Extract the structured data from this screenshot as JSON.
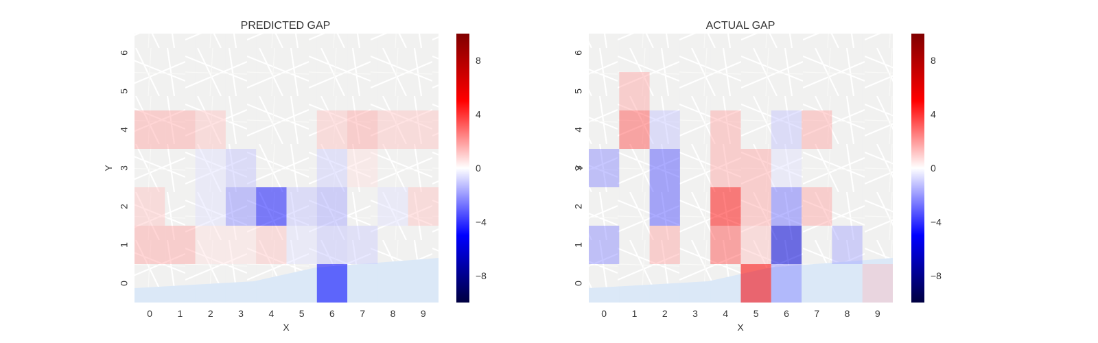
{
  "chart_data": [
    {
      "type": "heatmap",
      "title": "PREDICTED GAP",
      "xlabel": "X",
      "ylabel": "Y",
      "x_ticks": [
        "0",
        "1",
        "2",
        "3",
        "4",
        "5",
        "6",
        "7",
        "8",
        "9"
      ],
      "y_ticks": [
        "0",
        "1",
        "2",
        "3",
        "4",
        "5",
        "6"
      ],
      "colormap": "seismic",
      "vlim": [
        -10,
        10
      ],
      "colorbar_ticks": [
        "8",
        "4",
        "0",
        "−4",
        "−8"
      ],
      "colorbar_tick_values": [
        8,
        4,
        0,
        -4,
        -8
      ],
      "cells": [
        [
          0,
          0,
          0
        ],
        [
          1,
          0,
          0
        ],
        [
          2,
          0,
          0
        ],
        [
          3,
          0,
          0
        ],
        [
          4,
          0,
          0
        ],
        [
          5,
          0,
          0
        ],
        [
          6,
          0,
          -5
        ],
        [
          7,
          0,
          0
        ],
        [
          8,
          0,
          0
        ],
        [
          9,
          0,
          0
        ],
        [
          0,
          1,
          1.5
        ],
        [
          1,
          1,
          1.5
        ],
        [
          2,
          1,
          0.5
        ],
        [
          3,
          1,
          0.5
        ],
        [
          4,
          1,
          1
        ],
        [
          5,
          1,
          -0.5
        ],
        [
          6,
          1,
          -1
        ],
        [
          7,
          1,
          -0.8
        ],
        [
          8,
          1,
          0
        ],
        [
          9,
          1,
          0
        ],
        [
          0,
          2,
          1
        ],
        [
          1,
          2,
          0
        ],
        [
          2,
          2,
          -0.5
        ],
        [
          3,
          2,
          -2
        ],
        [
          4,
          2,
          -4.5
        ],
        [
          5,
          2,
          -1
        ],
        [
          6,
          2,
          -1.5
        ],
        [
          7,
          2,
          0
        ],
        [
          8,
          2,
          -0.5
        ],
        [
          9,
          2,
          1
        ],
        [
          0,
          3,
          0
        ],
        [
          1,
          3,
          0
        ],
        [
          2,
          3,
          -0.5
        ],
        [
          3,
          3,
          -1
        ],
        [
          4,
          3,
          0
        ],
        [
          5,
          3,
          0
        ],
        [
          6,
          3,
          -0.8
        ],
        [
          7,
          3,
          0.5
        ],
        [
          8,
          3,
          0
        ],
        [
          9,
          3,
          0
        ],
        [
          0,
          4,
          1.5
        ],
        [
          1,
          4,
          1.5
        ],
        [
          2,
          4,
          1
        ],
        [
          3,
          4,
          0
        ],
        [
          4,
          4,
          0
        ],
        [
          5,
          4,
          0
        ],
        [
          6,
          4,
          1
        ],
        [
          7,
          4,
          1.5
        ],
        [
          8,
          4,
          1
        ],
        [
          9,
          4,
          1
        ],
        [
          0,
          5,
          0
        ],
        [
          1,
          5,
          0
        ],
        [
          2,
          5,
          0
        ],
        [
          3,
          5,
          0
        ],
        [
          4,
          5,
          0
        ],
        [
          5,
          5,
          0
        ],
        [
          6,
          5,
          0
        ],
        [
          7,
          5,
          0
        ],
        [
          8,
          5,
          0
        ],
        [
          9,
          5,
          0
        ],
        [
          0,
          6,
          0
        ],
        [
          1,
          6,
          0
        ],
        [
          2,
          6,
          0
        ],
        [
          3,
          6,
          0
        ],
        [
          4,
          6,
          0
        ],
        [
          5,
          6,
          0
        ],
        [
          6,
          6,
          0
        ],
        [
          7,
          6,
          0
        ],
        [
          8,
          6,
          0
        ],
        [
          9,
          6,
          0
        ]
      ]
    },
    {
      "type": "heatmap",
      "title": "ACTUAL GAP",
      "xlabel": "X",
      "ylabel": "Y",
      "x_ticks": [
        "0",
        "1",
        "2",
        "3",
        "4",
        "5",
        "6",
        "7",
        "8",
        "9"
      ],
      "y_ticks": [
        "0",
        "1",
        "2",
        "3",
        "4",
        "5",
        "6"
      ],
      "colormap": "seismic",
      "vlim": [
        -10,
        10
      ],
      "colorbar_ticks": [
        "8",
        "4",
        "0",
        "−4",
        "−8"
      ],
      "colorbar_tick_values": [
        8,
        4,
        0,
        -4,
        -8
      ],
      "cells": [
        [
          0,
          0,
          0
        ],
        [
          1,
          0,
          0
        ],
        [
          2,
          0,
          0
        ],
        [
          3,
          0,
          0
        ],
        [
          4,
          0,
          0
        ],
        [
          5,
          0,
          5
        ],
        [
          6,
          0,
          -2
        ],
        [
          7,
          0,
          0
        ],
        [
          8,
          0,
          0
        ],
        [
          9,
          0,
          1
        ],
        [
          0,
          1,
          -2
        ],
        [
          1,
          1,
          0
        ],
        [
          2,
          1,
          1.5
        ],
        [
          3,
          1,
          0
        ],
        [
          4,
          1,
          3
        ],
        [
          5,
          1,
          1
        ],
        [
          6,
          1,
          -6
        ],
        [
          7,
          1,
          0
        ],
        [
          8,
          1,
          -1.5
        ],
        [
          9,
          1,
          0
        ],
        [
          0,
          2,
          0
        ],
        [
          1,
          2,
          0
        ],
        [
          2,
          2,
          -3
        ],
        [
          3,
          2,
          0
        ],
        [
          4,
          2,
          4.5
        ],
        [
          5,
          2,
          1.5
        ],
        [
          6,
          2,
          -2.5
        ],
        [
          7,
          2,
          1.5
        ],
        [
          8,
          2,
          0
        ],
        [
          9,
          2,
          0
        ],
        [
          0,
          3,
          -2
        ],
        [
          1,
          3,
          0
        ],
        [
          2,
          3,
          -3
        ],
        [
          3,
          3,
          0
        ],
        [
          4,
          3,
          1.5
        ],
        [
          5,
          3,
          1.5
        ],
        [
          6,
          3,
          -0.5
        ],
        [
          7,
          3,
          0
        ],
        [
          8,
          3,
          0
        ],
        [
          9,
          3,
          0
        ],
        [
          0,
          4,
          0
        ],
        [
          1,
          4,
          3
        ],
        [
          2,
          4,
          -1
        ],
        [
          3,
          4,
          0
        ],
        [
          4,
          4,
          1.5
        ],
        [
          5,
          4,
          0
        ],
        [
          6,
          4,
          -1
        ],
        [
          7,
          4,
          1.5
        ],
        [
          8,
          4,
          0
        ],
        [
          9,
          4,
          0
        ],
        [
          0,
          5,
          0
        ],
        [
          1,
          5,
          1.5
        ],
        [
          2,
          5,
          0
        ],
        [
          3,
          5,
          0
        ],
        [
          4,
          5,
          0
        ],
        [
          5,
          5,
          0
        ],
        [
          6,
          5,
          0
        ],
        [
          7,
          5,
          0
        ],
        [
          8,
          5,
          0
        ],
        [
          9,
          5,
          0
        ],
        [
          0,
          6,
          0
        ],
        [
          1,
          6,
          0
        ],
        [
          2,
          6,
          0
        ],
        [
          3,
          6,
          0
        ],
        [
          4,
          6,
          0
        ],
        [
          5,
          6,
          0
        ],
        [
          6,
          6,
          0
        ],
        [
          7,
          6,
          0
        ],
        [
          8,
          6,
          0
        ],
        [
          9,
          6,
          0
        ]
      ]
    }
  ]
}
